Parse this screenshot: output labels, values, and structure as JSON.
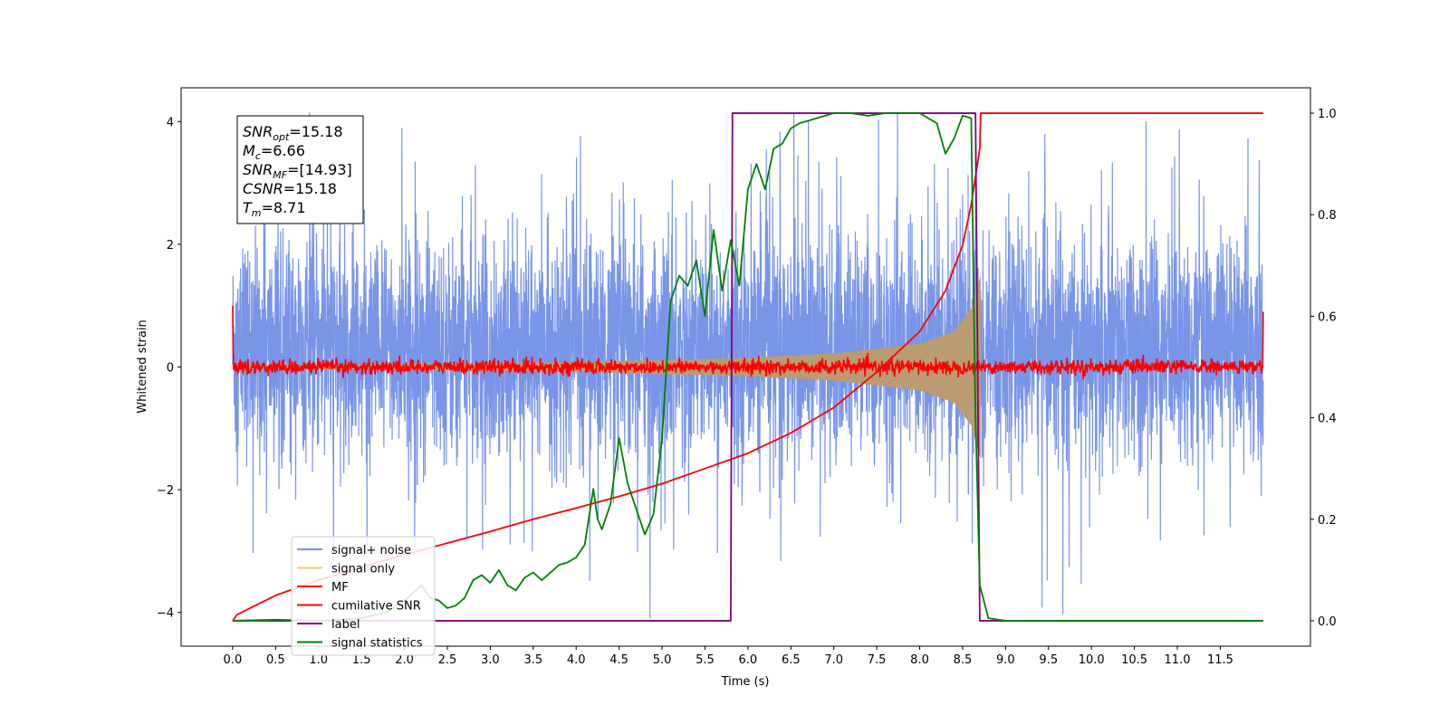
{
  "chart_data": {
    "type": "line",
    "xlabel": "Time (s)",
    "ylabel": "Whitened strain",
    "xlim": [
      -0.6,
      12.55
    ],
    "ylim_left": [
      -4.55,
      4.55
    ],
    "ylim_right": [
      -0.05,
      1.05
    ],
    "x_ticks": [
      0.0,
      0.5,
      1.0,
      1.5,
      2.0,
      2.5,
      3.0,
      3.5,
      4.0,
      4.5,
      5.0,
      5.5,
      6.0,
      6.5,
      7.0,
      7.5,
      8.0,
      8.5,
      9.0,
      9.5,
      10.0,
      10.5,
      11.0,
      11.5
    ],
    "x_tick_labels": [
      "0.0",
      "0.5",
      "1.0",
      "1.5",
      "2.0",
      "2.5",
      "3.0",
      "3.5",
      "4.0",
      "4.5",
      "5.0",
      "5.5",
      "6.0",
      "6.5",
      "7.0",
      "7.5",
      "8.0",
      "8.5",
      "9.0",
      "9.5",
      "10.0",
      "10.5",
      "11.0",
      "11.5"
    ],
    "y_left_ticks": [
      -4,
      -2,
      0,
      2,
      4
    ],
    "y_left_tick_labels": [
      "−4",
      "−2",
      "0",
      "2",
      "4"
    ],
    "y_right_ticks": [
      0.0,
      0.2,
      0.4,
      0.6,
      0.8,
      1.0
    ],
    "y_right_tick_labels": [
      "0.0",
      "0.2",
      "0.4",
      "0.6",
      "0.8",
      "1.0"
    ],
    "legend_position": "lower-left",
    "series": [
      {
        "name": "signal+ noise",
        "color": "#7895e8",
        "axis": "left",
        "kind": "noise",
        "x_range": [
          0.0,
          12.0
        ],
        "typical_amplitude": [
          -2.2,
          2.6
        ],
        "peak_amplitude": [
          -4.1,
          4.15
        ]
      },
      {
        "name": "signal only",
        "color": "#f7c96b",
        "axis": "left",
        "kind": "chirp",
        "x_range": [
          0.0,
          8.71
        ],
        "envelope": [
          [
            0.0,
            0.02
          ],
          [
            2.0,
            0.05
          ],
          [
            4.0,
            0.08
          ],
          [
            6.0,
            0.15
          ],
          [
            7.0,
            0.22
          ],
          [
            8.0,
            0.38
          ],
          [
            8.4,
            0.58
          ],
          [
            8.6,
            0.95
          ],
          [
            8.71,
            1.5
          ]
        ]
      },
      {
        "name": "MF",
        "color": "#ff0000",
        "axis": "left",
        "kind": "noisy-zero",
        "x_range": [
          0.0,
          12.0
        ],
        "start_value": 1.0,
        "end_value": 0.9,
        "noise_level": 0.06
      },
      {
        "name": "cumilative SNR",
        "color": "#ff0000",
        "axis": "right",
        "x": [
          0.0,
          0.05,
          0.5,
          1.0,
          1.5,
          2.0,
          2.5,
          3.0,
          3.5,
          4.0,
          4.5,
          5.0,
          5.5,
          6.0,
          6.5,
          7.0,
          7.5,
          8.0,
          8.3,
          8.5,
          8.6,
          8.7,
          8.71,
          12.0
        ],
        "values": [
          0.0,
          0.012,
          0.05,
          0.08,
          0.106,
          0.13,
          0.153,
          0.176,
          0.2,
          0.222,
          0.245,
          0.27,
          0.3,
          0.33,
          0.37,
          0.42,
          0.49,
          0.57,
          0.65,
          0.74,
          0.82,
          0.93,
          1.0,
          1.0
        ]
      },
      {
        "name": "label",
        "color": "#800080",
        "axis": "right",
        "x": [
          0.0,
          5.8,
          5.82,
          8.65,
          8.7,
          12.0
        ],
        "values": [
          0.0,
          0.0,
          1.0,
          1.0,
          0.0,
          0.0
        ]
      },
      {
        "name": "signal statistics",
        "color": "#008000",
        "axis": "right",
        "x": [
          0.0,
          0.5,
          1.0,
          1.5,
          1.8,
          2.0,
          2.2,
          2.3,
          2.4,
          2.5,
          2.6,
          2.7,
          2.8,
          2.9,
          3.0,
          3.1,
          3.2,
          3.3,
          3.4,
          3.5,
          3.6,
          3.7,
          3.8,
          3.9,
          4.0,
          4.1,
          4.2,
          4.25,
          4.3,
          4.4,
          4.5,
          4.6,
          4.7,
          4.8,
          4.9,
          5.0,
          5.1,
          5.2,
          5.3,
          5.4,
          5.5,
          5.6,
          5.7,
          5.8,
          5.9,
          6.0,
          6.1,
          6.2,
          6.3,
          6.4,
          6.5,
          6.6,
          6.8,
          7.0,
          7.2,
          7.4,
          7.6,
          7.8,
          8.0,
          8.1,
          8.2,
          8.3,
          8.4,
          8.5,
          8.6,
          8.65,
          8.7,
          8.8,
          9.0,
          10.0,
          11.0,
          11.99
        ],
        "values": [
          0.0,
          0.002,
          0.0,
          0.005,
          0.018,
          0.04,
          0.07,
          0.045,
          0.04,
          0.025,
          0.03,
          0.045,
          0.08,
          0.09,
          0.075,
          0.1,
          0.07,
          0.06,
          0.085,
          0.095,
          0.08,
          0.095,
          0.11,
          0.115,
          0.125,
          0.15,
          0.26,
          0.2,
          0.18,
          0.23,
          0.36,
          0.27,
          0.22,
          0.17,
          0.21,
          0.36,
          0.63,
          0.68,
          0.66,
          0.71,
          0.6,
          0.77,
          0.65,
          0.75,
          0.66,
          0.85,
          0.9,
          0.85,
          0.93,
          0.94,
          0.97,
          0.98,
          0.99,
          1.0,
          1.0,
          0.995,
          1.0,
          1.0,
          1.0,
          0.99,
          0.98,
          0.92,
          0.95,
          0.995,
          0.99,
          0.4,
          0.07,
          0.005,
          0.0,
          0.0,
          0.0,
          0.0
        ]
      }
    ],
    "annotation_lines": [
      {
        "var": "SNR",
        "sub": "opt",
        "rest": "=15.18"
      },
      {
        "var": "M",
        "sub": "c",
        "rest": "=6.66"
      },
      {
        "var": "SNR",
        "sub": "MF",
        "rest": "=[14.93]"
      },
      {
        "var": "CSNR",
        "sub": "",
        "rest": "=15.18"
      },
      {
        "var": "T",
        "sub": "m",
        "rest": "=8.71"
      }
    ]
  }
}
